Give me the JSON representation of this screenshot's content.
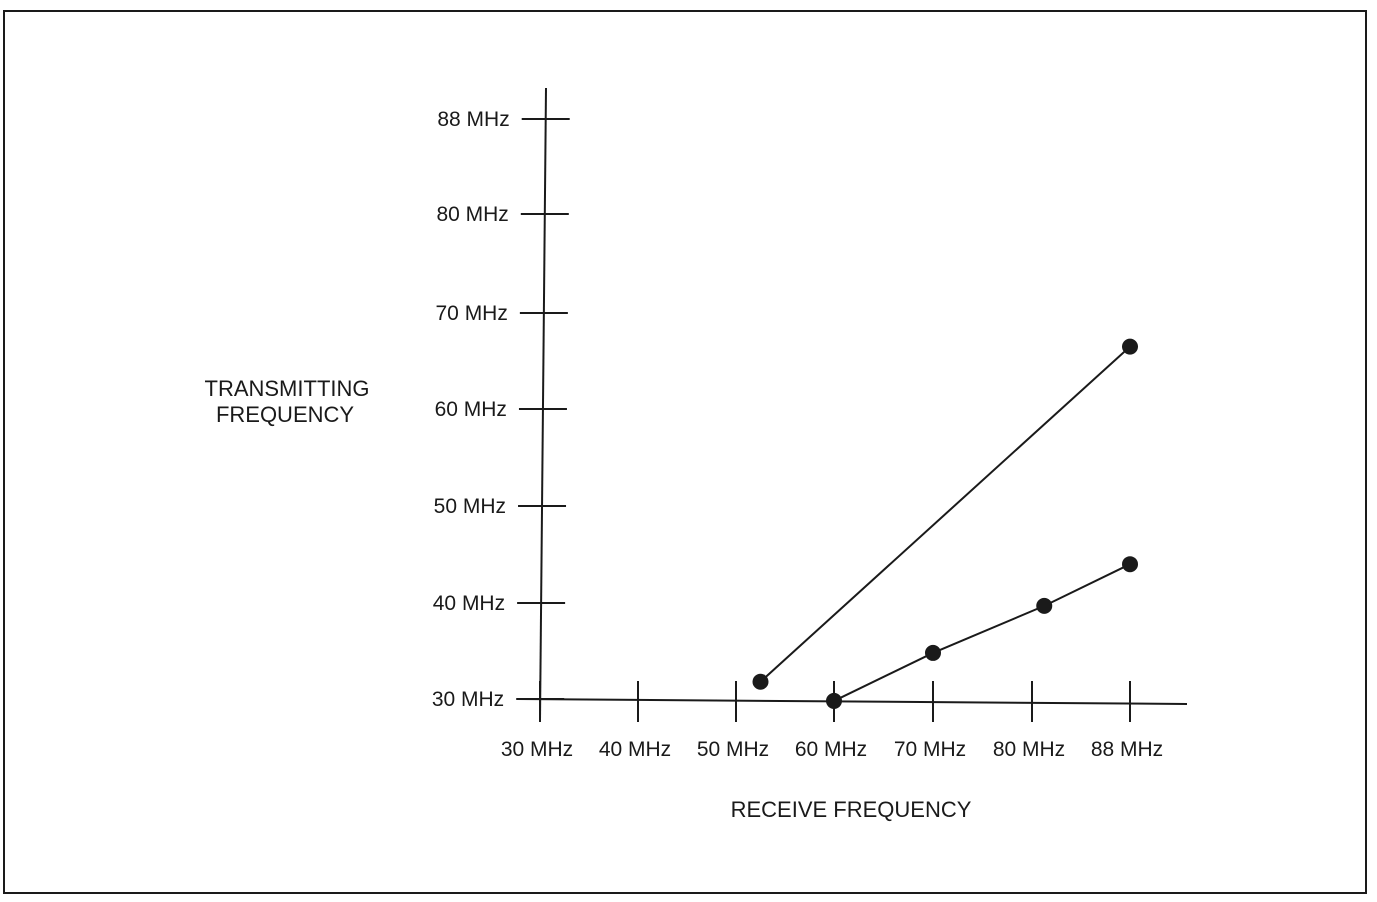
{
  "chart_data": {
    "type": "line",
    "xlabel": "RECEIVE FREQUENCY",
    "ylabel": [
      "TRANSMITTING",
      "FREQUENCY"
    ],
    "x_ticks": [
      "30 MHz",
      "40 MHz",
      "50 MHz",
      "60 MHz",
      "70 MHz",
      "80 MHz",
      "88 MHz"
    ],
    "y_ticks": [
      "30 MHz",
      "40 MHz",
      "50 MHz",
      "60 MHz",
      "70 MHz",
      "80 MHz",
      "88 MHz"
    ],
    "xlim": [
      30,
      88
    ],
    "ylim": [
      30,
      88
    ],
    "grid": false,
    "series": [
      {
        "points": [
          [
            52.5,
            31.8
          ],
          [
            88,
            66.5
          ]
        ]
      },
      {
        "points": [
          [
            60,
            29.8
          ],
          [
            70,
            34.8
          ],
          [
            81,
            39.7
          ],
          [
            88,
            44
          ]
        ]
      }
    ]
  }
}
